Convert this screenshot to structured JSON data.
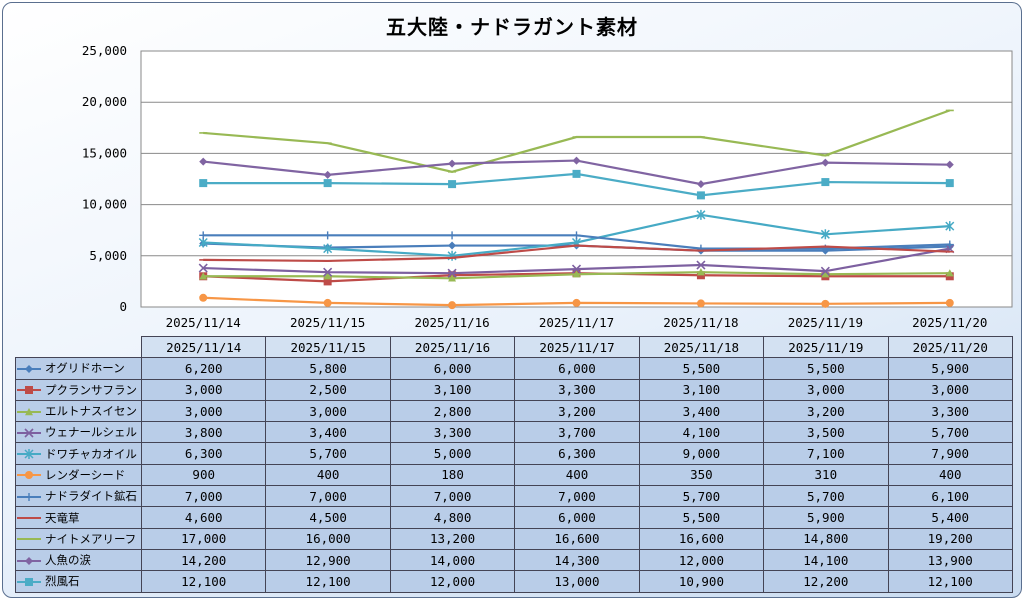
{
  "chart_data": {
    "type": "line",
    "title": "五大陸・ナドラガント素材",
    "categories": [
      "2025/11/14",
      "2025/11/15",
      "2025/11/16",
      "2025/11/17",
      "2025/11/18",
      "2025/11/19",
      "2025/11/20"
    ],
    "ylim": [
      0,
      25000
    ],
    "yticks": [
      "0",
      "5,000",
      "10,000",
      "15,000",
      "20,000",
      "25,000"
    ],
    "ytick_values": [
      0,
      5000,
      10000,
      15000,
      20000,
      25000
    ],
    "grid": true,
    "legend": "table-below",
    "series": [
      {
        "name": "オグリドホーン",
        "color": "#4a7ebb",
        "marker": "diamond",
        "values": [
          6200,
          5800,
          6000,
          6000,
          5500,
          5500,
          5900
        ],
        "labels": [
          "6,200",
          "5,800",
          "6,000",
          "6,000",
          "5,500",
          "5,500",
          "5,900"
        ]
      },
      {
        "name": "プクランサフラン",
        "color": "#be4b48",
        "marker": "square",
        "values": [
          3000,
          2500,
          3100,
          3300,
          3100,
          3000,
          3000
        ],
        "labels": [
          "3,000",
          "2,500",
          "3,100",
          "3,300",
          "3,100",
          "3,000",
          "3,000"
        ]
      },
      {
        "name": "エルトナスイセン",
        "color": "#98b954",
        "marker": "triangle",
        "values": [
          3000,
          3000,
          2800,
          3200,
          3400,
          3200,
          3300
        ],
        "labels": [
          "3,000",
          "3,000",
          "2,800",
          "3,200",
          "3,400",
          "3,200",
          "3,300"
        ]
      },
      {
        "name": "ウェナールシェル",
        "color": "#7d60a0",
        "marker": "x",
        "values": [
          3800,
          3400,
          3300,
          3700,
          4100,
          3500,
          5700
        ],
        "labels": [
          "3,800",
          "3,400",
          "3,300",
          "3,700",
          "4,100",
          "3,500",
          "5,700"
        ]
      },
      {
        "name": "ドワチャカオイル",
        "color": "#46aac5",
        "marker": "star",
        "values": [
          6300,
          5700,
          5000,
          6300,
          9000,
          7100,
          7900
        ],
        "labels": [
          "6,300",
          "5,700",
          "5,000",
          "6,300",
          "9,000",
          "7,100",
          "7,900"
        ]
      },
      {
        "name": "レンダーシード",
        "color": "#f79646",
        "marker": "circle",
        "values": [
          900,
          400,
          180,
          400,
          350,
          310,
          400
        ],
        "labels": [
          "900",
          "400",
          "180",
          "400",
          "350",
          "310",
          "400"
        ]
      },
      {
        "name": "ナドラダイト鉱石",
        "color": "#4a7ebb",
        "marker": "plus",
        "values": [
          7000,
          7000,
          7000,
          7000,
          5700,
          5700,
          6100
        ],
        "labels": [
          "7,000",
          "7,000",
          "7,000",
          "7,000",
          "5,700",
          "5,700",
          "6,100"
        ]
      },
      {
        "name": "天竜草",
        "color": "#be4b48",
        "marker": "dash",
        "values": [
          4600,
          4500,
          4800,
          6000,
          5500,
          5900,
          5400
        ],
        "labels": [
          "4,600",
          "4,500",
          "4,800",
          "6,000",
          "5,500",
          "5,900",
          "5,400"
        ]
      },
      {
        "name": "ナイトメアリーフ",
        "color": "#98b954",
        "marker": "dash",
        "values": [
          17000,
          16000,
          13200,
          16600,
          16600,
          14800,
          19200
        ],
        "labels": [
          "17,000",
          "16,000",
          "13,200",
          "16,600",
          "16,600",
          "14,800",
          "19,200"
        ]
      },
      {
        "name": "人魚の涙",
        "color": "#8064a2",
        "marker": "diamond",
        "values": [
          14200,
          12900,
          14000,
          14300,
          12000,
          14100,
          13900
        ],
        "labels": [
          "14,200",
          "12,900",
          "14,000",
          "14,300",
          "12,000",
          "14,100",
          "13,900"
        ]
      },
      {
        "name": "烈風石",
        "color": "#4bacc6",
        "marker": "square",
        "values": [
          12100,
          12100,
          12000,
          13000,
          10900,
          12200,
          12100
        ],
        "labels": [
          "12,100",
          "12,100",
          "12,000",
          "13,000",
          "10,900",
          "12,200",
          "12,100"
        ]
      }
    ]
  }
}
